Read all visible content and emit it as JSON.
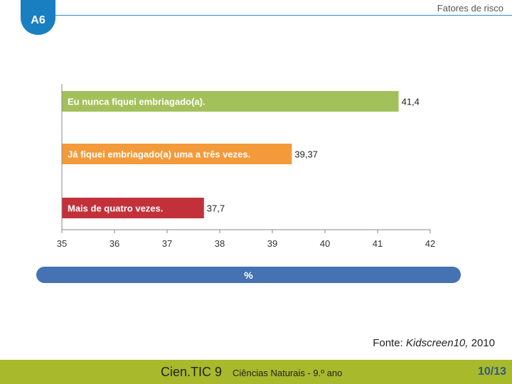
{
  "header": {
    "badge": "A6",
    "title": "Fatores de risco"
  },
  "chart_data": {
    "type": "bar",
    "orientation": "horizontal",
    "categories": [
      "Eu nunca fiquei embriagado(a).",
      "Já fiquei embriagado(a) uma a três vezes.",
      "Mais de quatro vezes."
    ],
    "values": [
      41.4,
      39.37,
      37.7
    ],
    "value_labels": [
      "41,4",
      "39,37",
      "37,7"
    ],
    "bar_colors": [
      "#a3c15a",
      "#f39a3b",
      "#c2313a"
    ],
    "xlim": [
      35,
      42
    ],
    "xticks": [
      "35",
      "36",
      "37",
      "38",
      "39",
      "40",
      "41",
      "42"
    ],
    "xlabel": "%",
    "grid": false
  },
  "source": {
    "prefix": "Fonte: ",
    "italic": "Kidscreen10,",
    "suffix": " 2010"
  },
  "footer": {
    "brand": "Cien.TIC 9",
    "subject": "Ciências Naturais - 9.º ano",
    "page": "10/13"
  }
}
